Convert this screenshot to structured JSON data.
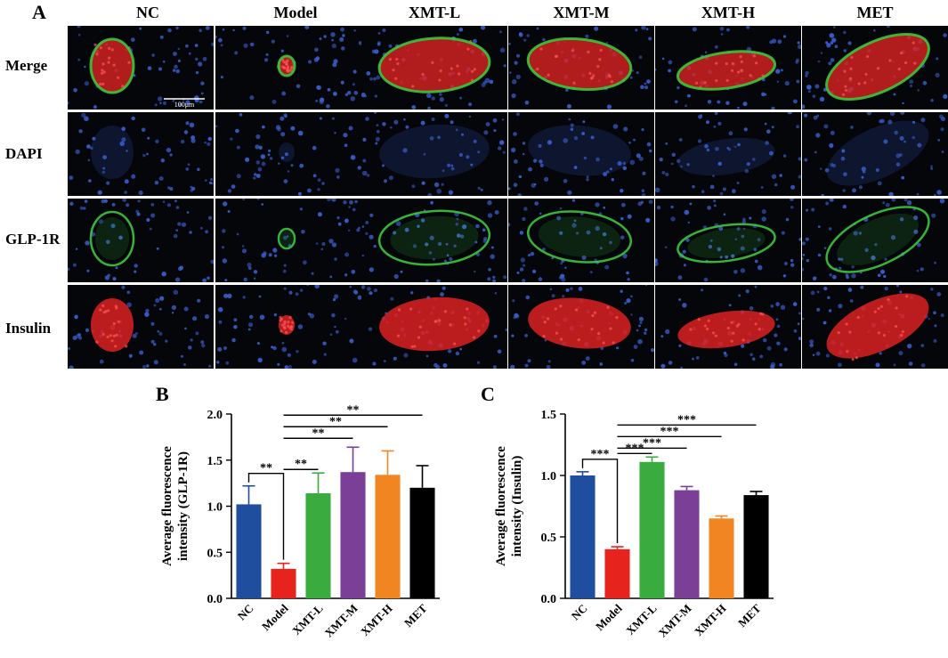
{
  "panel_letters": {
    "a": "A",
    "b": "B",
    "c": "C"
  },
  "columns": [
    "NC",
    "Model",
    "XMT-L",
    "XMT-M",
    "XMT-H",
    "MET"
  ],
  "rows": [
    "Merge",
    "DAPI",
    "GLP-1R",
    "Insulin"
  ],
  "scale_bar_label": "100μm",
  "colors": {
    "NC": "#1f4e9e",
    "Model": "#e6231d",
    "XMT-L": "#3aab3f",
    "XMT-M": "#7b3f98",
    "XMT-H": "#f08522",
    "MET": "#000000",
    "tile_background": "#05060a",
    "dapi": "#3a5fd0",
    "glp1r": "#3cc83c",
    "insulin": "#dc2222"
  },
  "chart_data": [
    {
      "type": "bar",
      "panel": "B",
      "categories": [
        "NC",
        "Model",
        "XMT-L",
        "XMT-M",
        "XMT-H",
        "MET"
      ],
      "values": [
        1.02,
        0.32,
        1.14,
        1.37,
        1.34,
        1.2
      ],
      "errors": [
        0.2,
        0.06,
        0.22,
        0.27,
        0.26,
        0.24
      ],
      "ylabel_lines": [
        "Average fluorescence",
        "intensity (GLP-1R)"
      ],
      "ylim": [
        0,
        2.0
      ],
      "yticks": [
        "0.0",
        "0.5",
        "1.0",
        "1.5",
        "2.0"
      ],
      "brackets": [
        {
          "from": "NC",
          "to": "Model",
          "label": "**"
        },
        {
          "from": "Model",
          "to": "XMT-L",
          "label": "**"
        },
        {
          "from": "Model",
          "to": "XMT-M",
          "label": "**"
        },
        {
          "from": "Model",
          "to": "XMT-H",
          "label": "**"
        },
        {
          "from": "Model",
          "to": "MET",
          "label": "**"
        }
      ]
    },
    {
      "type": "bar",
      "panel": "C",
      "categories": [
        "NC",
        "Model",
        "XMT-L",
        "XMT-M",
        "XMT-H",
        "MET"
      ],
      "values": [
        1.0,
        0.4,
        1.11,
        0.88,
        0.65,
        0.84
      ],
      "errors": [
        0.03,
        0.02,
        0.04,
        0.03,
        0.02,
        0.03
      ],
      "ylabel_lines": [
        "Average fluorescence",
        "intensity (Insulin)"
      ],
      "ylim": [
        0,
        1.5
      ],
      "yticks": [
        "0.0",
        "0.5",
        "1.0",
        "1.5"
      ],
      "brackets": [
        {
          "from": "NC",
          "to": "Model",
          "label": "***"
        },
        {
          "from": "Model",
          "to": "XMT-L",
          "label": "***"
        },
        {
          "from": "Model",
          "to": "XMT-M",
          "label": "***"
        },
        {
          "from": "Model",
          "to": "XMT-H",
          "label": "***"
        },
        {
          "from": "Model",
          "to": "MET",
          "label": "***"
        }
      ]
    }
  ]
}
